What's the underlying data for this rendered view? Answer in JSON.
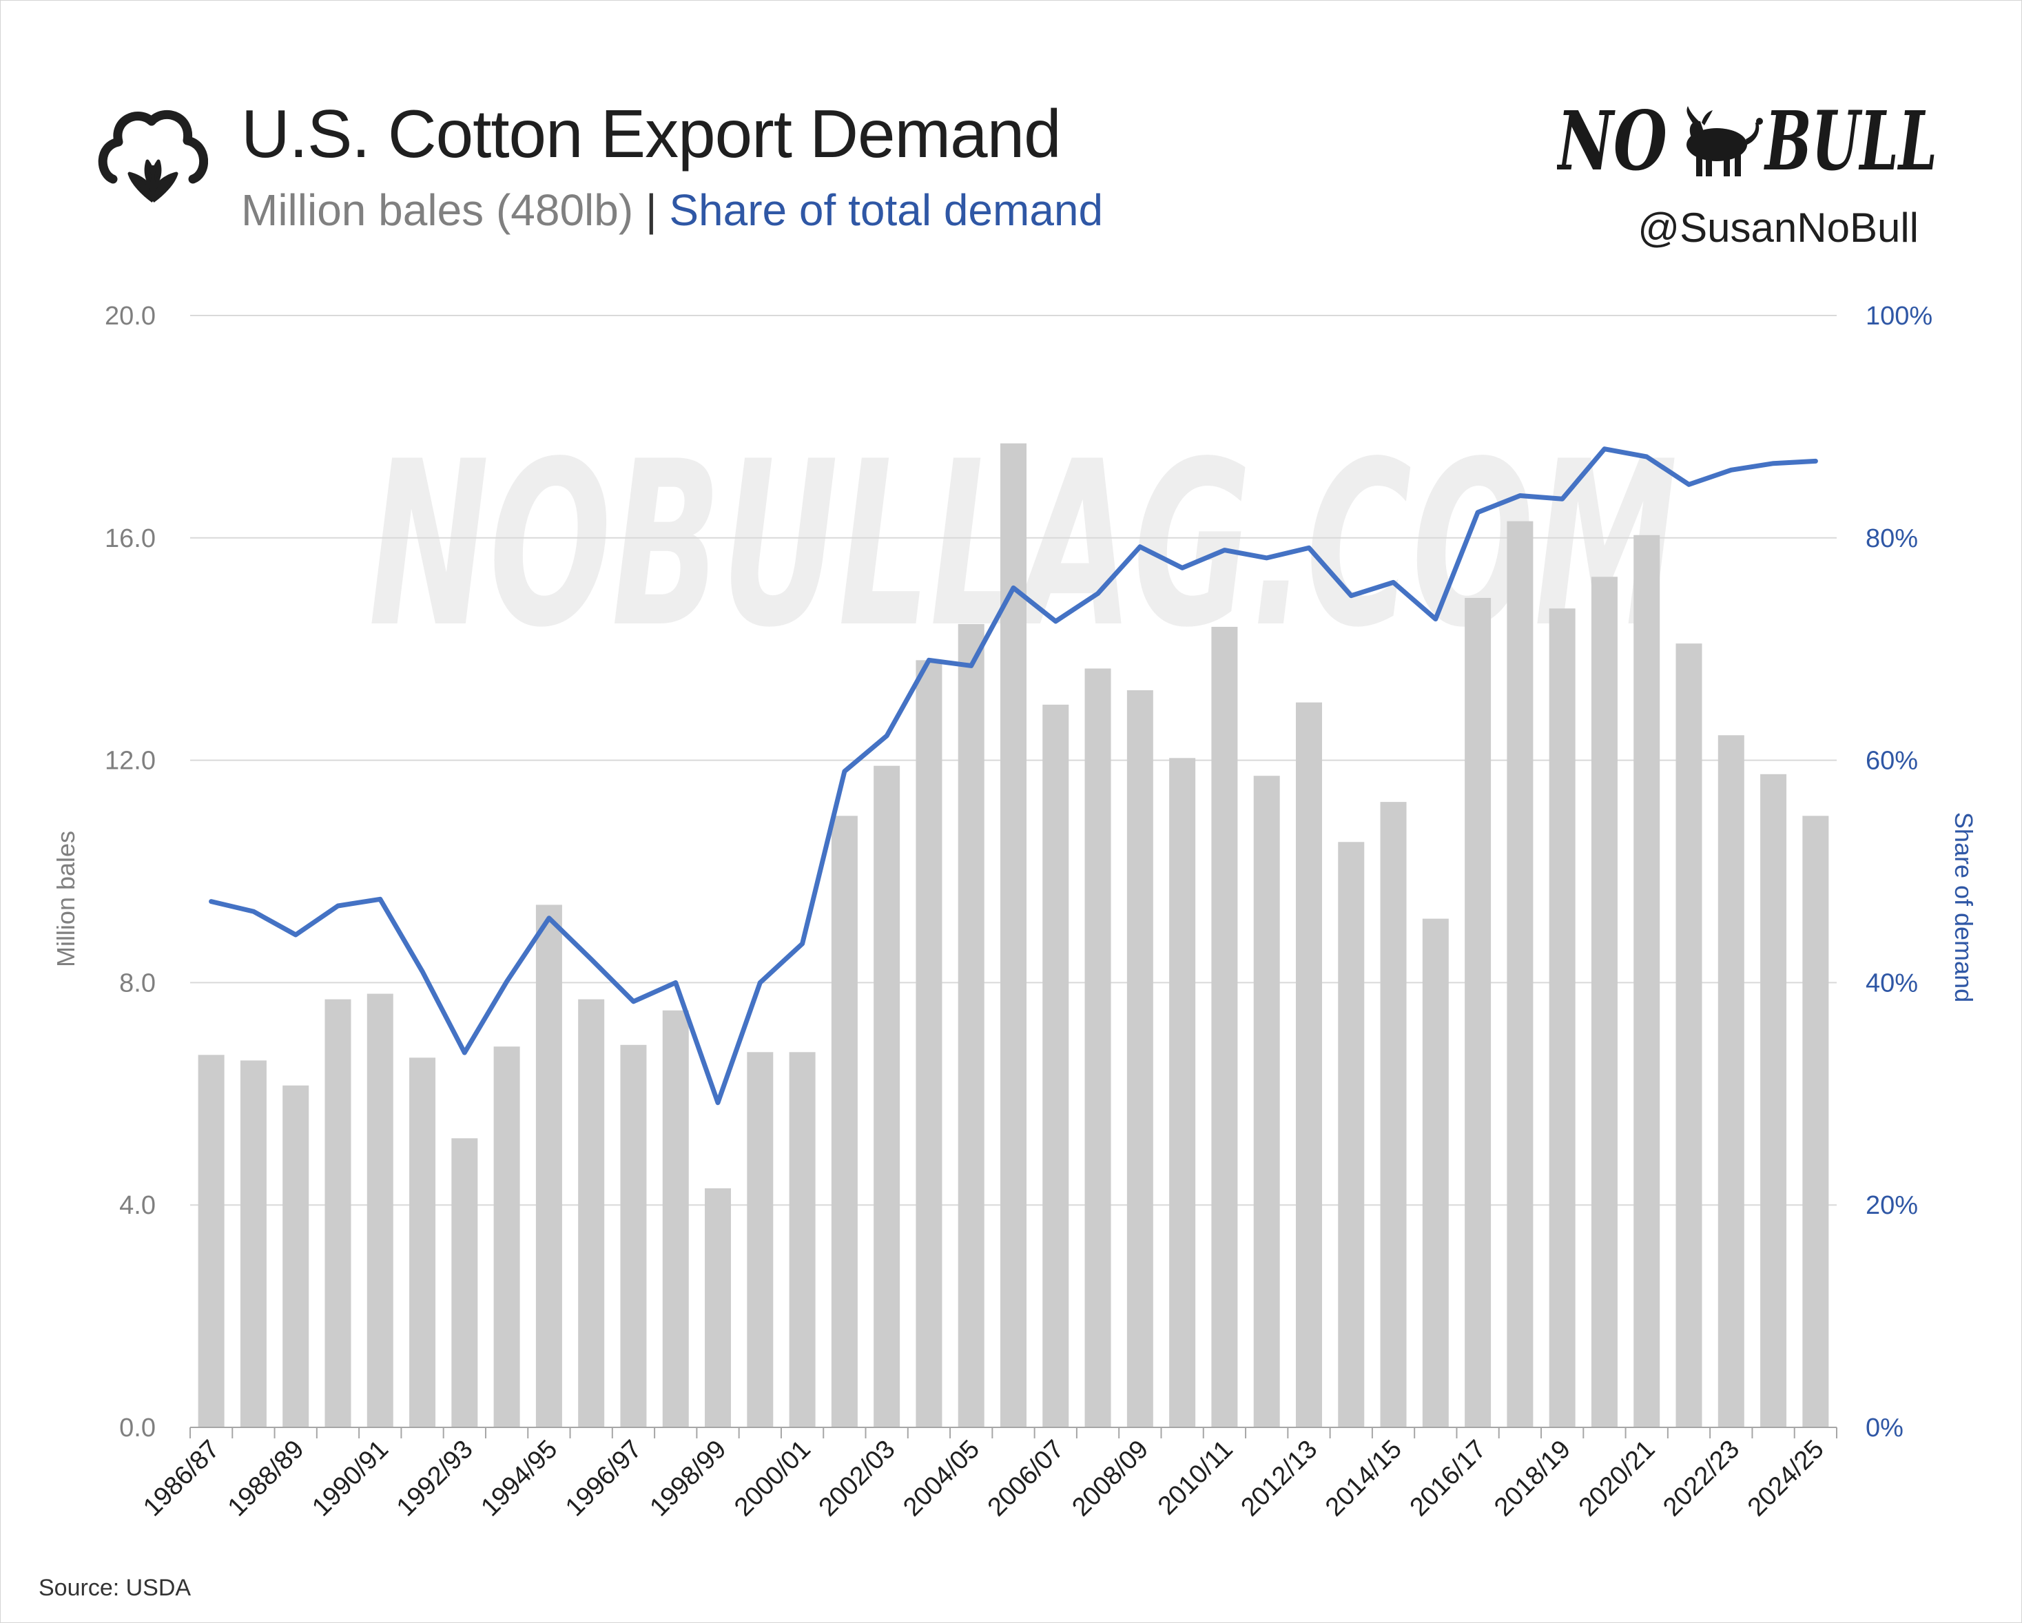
{
  "header": {
    "title": "U.S. Cotton Export Demand",
    "subtitle_units": "Million bales (480lb)",
    "subtitle_separator": " | ",
    "subtitle_share": "Share of total demand"
  },
  "brand": {
    "logo_left": "NO",
    "logo_right": "BULL",
    "handle": "@SusanNoBull",
    "watermark": "NOBULLAG.COM"
  },
  "footer": {
    "source": "Source: USDA"
  },
  "icons": {
    "cotton": "cotton-boll-icon",
    "bull": "bull-icon"
  },
  "colors": {
    "bars": "#cccccc",
    "line": "#4472c4",
    "share_text": "#2f57a5",
    "units_text": "#808080"
  },
  "chart_data": {
    "type": "bar",
    "title": "U.S. Cotton Export Demand",
    "subtitle": "Million bales (480lb) | Share of total demand",
    "ylabel": "Million bales",
    "y2label": "Share of demand",
    "ylim": [
      0,
      20
    ],
    "y2lim": [
      0,
      100
    ],
    "y_ticks": [
      "0.0",
      "4.0",
      "8.0",
      "12.0",
      "16.0",
      "20.0"
    ],
    "y2_ticks": [
      "0%",
      "20%",
      "40%",
      "60%",
      "80%",
      "100%"
    ],
    "grid": true,
    "categories": [
      "1986/87",
      "1987/88",
      "1988/89",
      "1989/90",
      "1990/91",
      "1991/92",
      "1992/93",
      "1993/94",
      "1994/95",
      "1995/96",
      "1996/97",
      "1997/98",
      "1998/99",
      "1999/00",
      "2000/01",
      "2001/02",
      "2002/03",
      "2003/04",
      "2004/05",
      "2005/06",
      "2006/07",
      "2007/08",
      "2008/09",
      "2009/10",
      "2010/11",
      "2011/12",
      "2012/13",
      "2013/14",
      "2014/15",
      "2015/16",
      "2016/17",
      "2017/18",
      "2018/19",
      "2019/20",
      "2020/21",
      "2021/22",
      "2022/23",
      "2023/24",
      "2024/25"
    ],
    "x_tick_labels": [
      "1986/87",
      "1988/89",
      "1990/91",
      "1992/93",
      "1994/95",
      "1996/97",
      "1998/99",
      "2000/01",
      "2002/03",
      "2004/05",
      "2006/07",
      "2008/09",
      "2010/11",
      "2012/13",
      "2014/15",
      "2016/17",
      "2018/19",
      "2020/21",
      "2022/23",
      "2024/25"
    ],
    "series": [
      {
        "type": "bar",
        "axis": "left",
        "values": [
          6.7,
          6.6,
          6.15,
          7.7,
          7.8,
          6.65,
          5.2,
          6.85,
          9.4,
          7.7,
          6.88,
          7.5,
          4.3,
          6.75,
          6.75,
          11.0,
          11.9,
          13.8,
          14.45,
          17.7,
          13.0,
          13.65,
          13.26,
          12.04,
          14.4,
          11.72,
          13.04,
          10.53,
          11.25,
          9.15,
          14.92,
          16.3,
          14.73,
          15.3,
          16.05,
          14.1,
          12.45,
          11.75,
          11.0
        ]
      },
      {
        "type": "line",
        "axis": "right",
        "values": [
          47.3,
          46.4,
          44.3,
          46.9,
          47.5,
          41.0,
          33.7,
          40.1,
          45.8,
          42.1,
          38.3,
          40.0,
          29.2,
          40.0,
          43.5,
          59.0,
          62.2,
          69.0,
          68.5,
          75.5,
          72.5,
          75.0,
          79.2,
          77.3,
          78.9,
          78.2,
          79.1,
          74.8,
          76.0,
          72.7,
          82.3,
          83.8,
          83.5,
          88.0,
          87.3,
          84.8,
          86.1,
          86.7,
          86.9
        ]
      }
    ]
  }
}
